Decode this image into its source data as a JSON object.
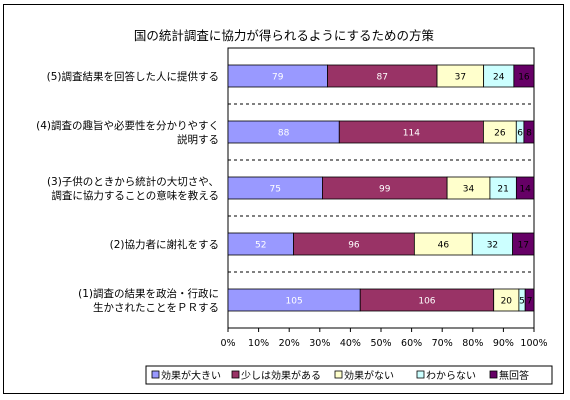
{
  "chart_data": {
    "type": "bar",
    "orientation": "horizontal",
    "stacked": "percent",
    "title": "国の統計調査に協力が得られるようにするための方策",
    "categories": [
      [
        "(5)調査結果を回答した人に提供する"
      ],
      [
        "(4)調査の趣旨や必要性を分かりやすく",
        "説明する"
      ],
      [
        "(3)子供のときから統計の大切さや、",
        "調査に協力することの意味を教える"
      ],
      [
        "(2)協力者に謝礼をする"
      ],
      [
        "(1)調査の結果を政治・行政に",
        "生かされたことをＰＲする"
      ]
    ],
    "series": [
      {
        "name": "効果が大きい",
        "values": [
          79,
          88,
          75,
          52,
          105
        ],
        "color": "#9999ff"
      },
      {
        "name": "少しは効果がある",
        "values": [
          87,
          114,
          99,
          96,
          106
        ],
        "color": "#993366"
      },
      {
        "name": "効果がない",
        "values": [
          37,
          26,
          34,
          46,
          20
        ],
        "color": "#ffffcc"
      },
      {
        "name": "わからない",
        "values": [
          24,
          6,
          21,
          32,
          5
        ],
        "color": "#ccffff"
      },
      {
        "name": "無回答",
        "values": [
          16,
          8,
          14,
          17,
          7
        ],
        "color": "#660066"
      }
    ],
    "xaxis_ticks": [
      "0%",
      "10%",
      "20%",
      "30%",
      "40%",
      "50%",
      "60%",
      "70%",
      "80%",
      "90%",
      "100%"
    ],
    "xlim": [
      0,
      100
    ],
    "grid": "dashed horizontal separators",
    "legend_position": "bottom"
  }
}
